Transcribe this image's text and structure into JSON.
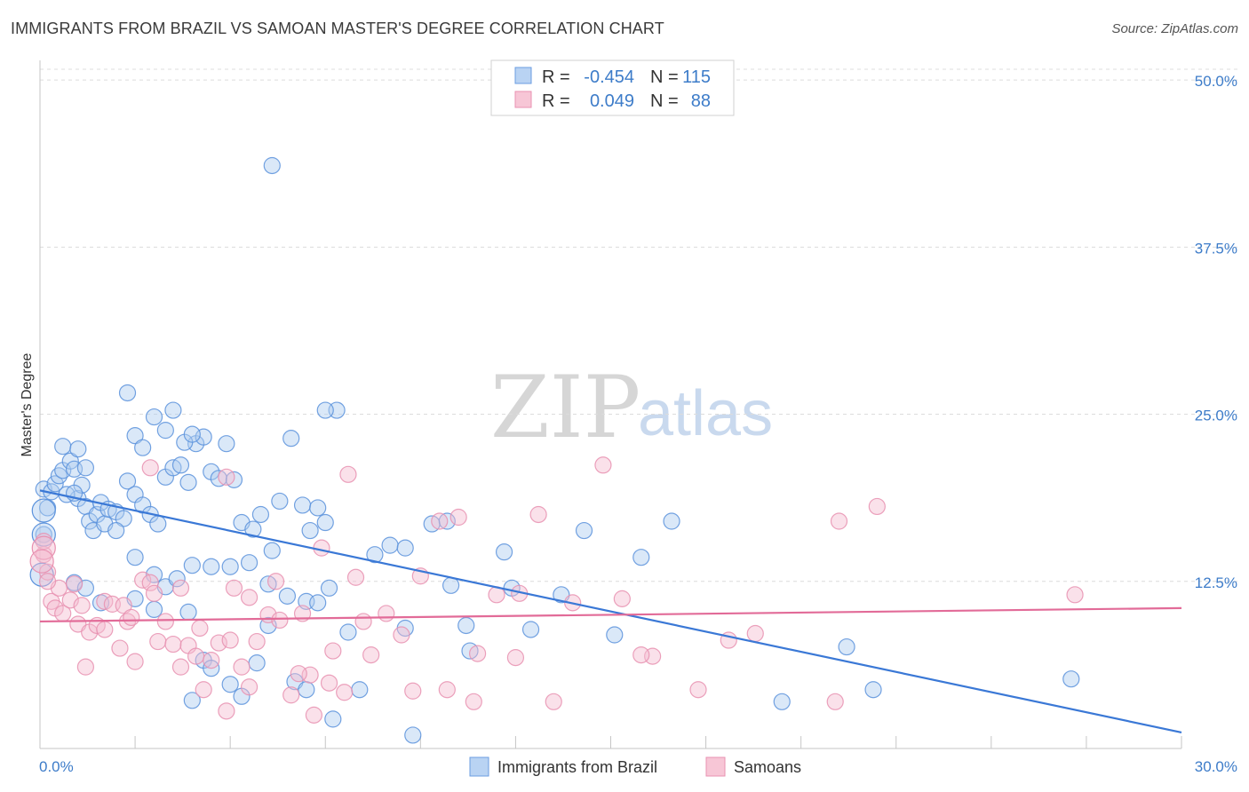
{
  "title": "IMMIGRANTS FROM BRAZIL VS SAMOAN MASTER'S DEGREE CORRELATION CHART",
  "source": "Source: ZipAtlas.com",
  "watermark": {
    "zip": "ZIP",
    "atlas": "atlas"
  },
  "colors": {
    "blue": "#3a78d6",
    "blue_fill": "#aecbf0",
    "pink": "#e26b98",
    "pink_fill": "#f5bcd0",
    "tick_text": "#3d7cc9"
  },
  "legend": {
    "rows": [
      {
        "r_label": "R =",
        "r_value": "-0.454",
        "n_label": "N =",
        "n_value": "115"
      },
      {
        "r_label": "R =",
        "r_value": "0.049",
        "n_label": "N =",
        "n_value": "88"
      }
    ]
  },
  "chart_data": {
    "type": "scatter",
    "title": "IMMIGRANTS FROM BRAZIL VS SAMOAN MASTER'S DEGREE CORRELATION CHART",
    "xlabel": "",
    "ylabel": "Master's Degree",
    "xlim": [
      0,
      30
    ],
    "ylim": [
      0,
      52
    ],
    "x_tick_labels": [
      "0.0%",
      "30.0%"
    ],
    "y_ticks": [
      12.5,
      25.0,
      37.5,
      50.0
    ],
    "y_tick_labels": [
      "12.5%",
      "25.0%",
      "37.5%",
      "50.0%"
    ],
    "grid": true,
    "series": [
      {
        "name": "Immigrants from Brazil",
        "color": "#3a78d6",
        "trend": {
          "x": [
            0,
            30
          ],
          "y": [
            19.3,
            1.2
          ]
        },
        "points": [
          [
            0.1,
            19.4
          ],
          [
            0.2,
            18.0
          ],
          [
            0.3,
            19.2
          ],
          [
            0.4,
            19.8
          ],
          [
            0.5,
            20.4
          ],
          [
            0.6,
            20.8
          ],
          [
            0.8,
            21.5
          ],
          [
            0.9,
            20.9
          ],
          [
            1.0,
            18.7
          ],
          [
            1.1,
            19.7
          ],
          [
            1.2,
            18.1
          ],
          [
            1.3,
            17.0
          ],
          [
            1.4,
            16.3
          ],
          [
            1.5,
            17.5
          ],
          [
            1.6,
            18.4
          ],
          [
            1.7,
            16.8
          ],
          [
            1.8,
            17.9
          ],
          [
            2.0,
            17.7
          ],
          [
            2.2,
            17.2
          ],
          [
            0.6,
            22.6
          ],
          [
            1.0,
            22.4
          ],
          [
            1.2,
            21.0
          ],
          [
            0.7,
            19.0
          ],
          [
            0.9,
            19.1
          ],
          [
            2.3,
            20.0
          ],
          [
            2.5,
            19.0
          ],
          [
            2.7,
            18.2
          ],
          [
            2.9,
            17.5
          ],
          [
            3.1,
            16.8
          ],
          [
            3.3,
            20.3
          ],
          [
            3.5,
            21.0
          ],
          [
            3.7,
            21.2
          ],
          [
            3.9,
            19.9
          ],
          [
            4.1,
            22.8
          ],
          [
            4.3,
            23.3
          ],
          [
            4.5,
            20.7
          ],
          [
            4.7,
            20.2
          ],
          [
            4.9,
            22.8
          ],
          [
            5.1,
            20.1
          ],
          [
            5.3,
            16.9
          ],
          [
            5.6,
            16.4
          ],
          [
            5.8,
            17.5
          ],
          [
            6.1,
            14.8
          ],
          [
            6.3,
            18.5
          ],
          [
            6.6,
            23.2
          ],
          [
            6.9,
            18.2
          ],
          [
            7.1,
            16.3
          ],
          [
            7.3,
            18.0
          ],
          [
            7.5,
            16.9
          ],
          [
            7.8,
            25.3
          ],
          [
            2.3,
            26.6
          ],
          [
            3.0,
            24.8
          ],
          [
            3.3,
            23.8
          ],
          [
            3.5,
            25.3
          ],
          [
            3.8,
            22.9
          ],
          [
            4.0,
            23.5
          ],
          [
            2.5,
            23.4
          ],
          [
            2.7,
            22.5
          ],
          [
            2.0,
            16.3
          ],
          [
            2.5,
            14.3
          ],
          [
            3.0,
            13.0
          ],
          [
            3.3,
            12.1
          ],
          [
            3.6,
            12.7
          ],
          [
            4.0,
            13.7
          ],
          [
            4.5,
            13.6
          ],
          [
            5.0,
            13.6
          ],
          [
            5.5,
            13.9
          ],
          [
            6.0,
            12.3
          ],
          [
            6.5,
            11.4
          ],
          [
            7.0,
            11.0
          ],
          [
            7.3,
            10.9
          ],
          [
            7.6,
            12.0
          ],
          [
            8.1,
            8.7
          ],
          [
            8.4,
            4.4
          ],
          [
            8.8,
            14.5
          ],
          [
            9.2,
            15.2
          ],
          [
            9.6,
            9.0
          ],
          [
            10.3,
            16.8
          ],
          [
            10.8,
            12.2
          ],
          [
            11.2,
            9.2
          ],
          [
            11.3,
            7.3
          ],
          [
            12.2,
            14.7
          ],
          [
            12.9,
            8.9
          ],
          [
            13.7,
            11.5
          ],
          [
            14.3,
            16.3
          ],
          [
            15.1,
            8.5
          ],
          [
            15.8,
            14.3
          ],
          [
            16.6,
            17.0
          ],
          [
            0.9,
            12.4
          ],
          [
            1.2,
            12.0
          ],
          [
            1.6,
            10.9
          ],
          [
            2.5,
            11.2
          ],
          [
            3.0,
            10.4
          ],
          [
            3.9,
            10.2
          ],
          [
            4.3,
            6.6
          ],
          [
            4.5,
            6.0
          ],
          [
            5.0,
            4.8
          ],
          [
            5.3,
            3.9
          ],
          [
            5.7,
            6.4
          ],
          [
            6.0,
            9.2
          ],
          [
            6.7,
            5.0
          ],
          [
            7.0,
            4.4
          ],
          [
            7.7,
            2.2
          ],
          [
            9.8,
            1.0
          ],
          [
            4.0,
            3.6
          ],
          [
            6.1,
            43.6
          ],
          [
            7.5,
            25.3
          ],
          [
            12.4,
            12.0
          ],
          [
            21.2,
            7.6
          ],
          [
            21.9,
            4.4
          ],
          [
            27.1,
            5.2
          ],
          [
            19.5,
            3.5
          ],
          [
            9.6,
            15.0
          ],
          [
            10.7,
            17.0
          ],
          [
            0.1,
            16.0
          ]
        ]
      },
      {
        "name": "Samoans",
        "color": "#e26b98",
        "trend": {
          "x": [
            0,
            30
          ],
          "y": [
            9.5,
            10.5
          ]
        },
        "points": [
          [
            0.1,
            14.5
          ],
          [
            0.2,
            13.2
          ],
          [
            0.3,
            11.0
          ],
          [
            0.4,
            10.5
          ],
          [
            0.5,
            12.0
          ],
          [
            0.6,
            10.1
          ],
          [
            0.8,
            11.1
          ],
          [
            0.9,
            12.3
          ],
          [
            1.0,
            9.3
          ],
          [
            1.1,
            10.7
          ],
          [
            1.3,
            8.7
          ],
          [
            1.5,
            9.2
          ],
          [
            1.7,
            11.0
          ],
          [
            1.9,
            10.8
          ],
          [
            2.1,
            7.5
          ],
          [
            2.3,
            9.5
          ],
          [
            2.5,
            6.5
          ],
          [
            2.7,
            12.6
          ],
          [
            2.9,
            12.4
          ],
          [
            3.1,
            8.0
          ],
          [
            3.3,
            9.5
          ],
          [
            3.5,
            7.8
          ],
          [
            3.7,
            12.0
          ],
          [
            3.9,
            7.7
          ],
          [
            4.1,
            6.9
          ],
          [
            4.3,
            4.4
          ],
          [
            4.5,
            6.6
          ],
          [
            4.7,
            7.9
          ],
          [
            4.9,
            2.8
          ],
          [
            5.1,
            12.0
          ],
          [
            5.3,
            6.1
          ],
          [
            5.5,
            11.3
          ],
          [
            5.7,
            8.0
          ],
          [
            6.0,
            10.0
          ],
          [
            6.3,
            9.6
          ],
          [
            6.6,
            4.0
          ],
          [
            6.9,
            10.1
          ],
          [
            7.1,
            5.5
          ],
          [
            7.4,
            15.0
          ],
          [
            7.7,
            7.3
          ],
          [
            8.1,
            20.5
          ],
          [
            8.3,
            12.8
          ],
          [
            8.7,
            7.0
          ],
          [
            9.1,
            10.1
          ],
          [
            9.5,
            8.5
          ],
          [
            10.0,
            12.9
          ],
          [
            10.5,
            17.0
          ],
          [
            11.0,
            17.3
          ],
          [
            11.5,
            7.1
          ],
          [
            12.0,
            11.5
          ],
          [
            12.5,
            6.8
          ],
          [
            13.1,
            17.5
          ],
          [
            13.5,
            3.5
          ],
          [
            14.0,
            10.9
          ],
          [
            14.8,
            21.2
          ],
          [
            15.3,
            11.2
          ],
          [
            16.1,
            6.9
          ],
          [
            17.3,
            4.4
          ],
          [
            18.1,
            8.1
          ],
          [
            18.8,
            8.6
          ],
          [
            21.0,
            17.0
          ],
          [
            22.0,
            18.1
          ],
          [
            27.2,
            11.5
          ],
          [
            2.9,
            21.0
          ],
          [
            4.9,
            20.3
          ],
          [
            2.2,
            10.7
          ],
          [
            0.2,
            12.5
          ],
          [
            0.1,
            15.5
          ],
          [
            1.2,
            6.1
          ],
          [
            1.7,
            8.9
          ],
          [
            2.4,
            9.8
          ],
          [
            3.0,
            11.6
          ],
          [
            3.7,
            6.1
          ],
          [
            4.2,
            9.0
          ],
          [
            5.0,
            8.1
          ],
          [
            5.5,
            4.6
          ],
          [
            6.2,
            12.5
          ],
          [
            6.8,
            5.6
          ],
          [
            7.2,
            2.5
          ],
          [
            7.6,
            4.9
          ],
          [
            8.0,
            4.2
          ],
          [
            8.5,
            9.5
          ],
          [
            9.8,
            4.3
          ],
          [
            10.7,
            4.4
          ],
          [
            11.4,
            3.5
          ],
          [
            12.6,
            11.6
          ],
          [
            15.8,
            7.0
          ],
          [
            20.9,
            3.5
          ]
        ]
      }
    ]
  },
  "bottom_legend": [
    {
      "label": "Immigrants from Brazil"
    },
    {
      "label": "Samoans"
    }
  ]
}
